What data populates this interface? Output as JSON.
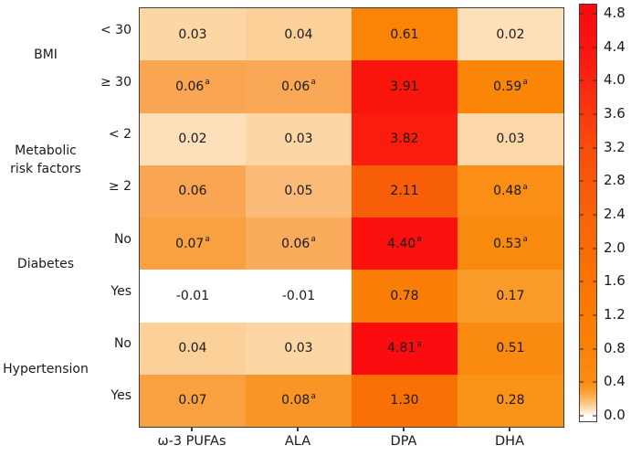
{
  "chart_data": {
    "type": "heatmap",
    "title": "",
    "xlabel": "",
    "ylabel": "",
    "columns": [
      "ω-3 PUFAs",
      "ALA",
      "DPA",
      "DHA"
    ],
    "row_groups": [
      {
        "name": "BMI",
        "lines": [
          "BMI"
        ]
      },
      {
        "name": "Metabolic risk factors",
        "lines": [
          "Metabolic",
          "risk factors"
        ]
      },
      {
        "name": "Diabetes",
        "lines": [
          "Diabetes"
        ]
      },
      {
        "name": "Hypertension",
        "lines": [
          "Hypertension"
        ]
      }
    ],
    "footnote_marker": "a",
    "rows": [
      {
        "group": "BMI",
        "label": "< 30",
        "cells": [
          {
            "v": 0.03,
            "text": "0.03",
            "sup": "",
            "color": "#fcd6a3"
          },
          {
            "v": 0.04,
            "text": "0.04",
            "sup": "",
            "color": "#fcd099"
          },
          {
            "v": 0.61,
            "text": "0.61",
            "sup": "",
            "color": "#fa8405"
          },
          {
            "v": 0.02,
            "text": "0.02",
            "sup": "",
            "color": "#fddfba"
          }
        ]
      },
      {
        "group": "BMI",
        "label": "≥ 30",
        "cells": [
          {
            "v": 0.06,
            "text": "0.06",
            "sup": "a",
            "color": "#faa551"
          },
          {
            "v": 0.06,
            "text": "0.06",
            "sup": "a",
            "color": "#faa756"
          },
          {
            "v": 3.91,
            "text": "3.91",
            "sup": "",
            "color": "#fa150c"
          },
          {
            "v": 0.59,
            "text": "0.59",
            "sup": "a",
            "color": "#fa8506"
          }
        ]
      },
      {
        "group": "Metabolic risk factors",
        "label": "< 2",
        "cells": [
          {
            "v": 0.02,
            "text": "0.02",
            "sup": "",
            "color": "#fddfba"
          },
          {
            "v": 0.03,
            "text": "0.03",
            "sup": "",
            "color": "#fcd6a5"
          },
          {
            "v": 3.82,
            "text": "3.82",
            "sup": "",
            "color": "#fa1d0d"
          },
          {
            "v": 0.03,
            "text": "0.03",
            "sup": "",
            "color": "#fcd8a9"
          }
        ]
      },
      {
        "group": "Metabolic risk factors",
        "label": "≥ 2",
        "cells": [
          {
            "v": 0.06,
            "text": "0.06",
            "sup": "",
            "color": "#faa551"
          },
          {
            "v": 0.05,
            "text": "0.05",
            "sup": "",
            "color": "#fbba77"
          },
          {
            "v": 2.11,
            "text": "2.11",
            "sup": "",
            "color": "#f85d07"
          },
          {
            "v": 0.48,
            "text": "0.48",
            "sup": "a",
            "color": "#fa8e16"
          }
        ]
      },
      {
        "group": "Diabetes",
        "label": "No",
        "cells": [
          {
            "v": 0.07,
            "text": "0.07",
            "sup": "a",
            "color": "#f9a040"
          },
          {
            "v": 0.06,
            "text": "0.06",
            "sup": "a",
            "color": "#faab5c"
          },
          {
            "v": 4.4,
            "text": "4.40",
            "sup": "a",
            "color": "#fa100d"
          },
          {
            "v": 0.53,
            "text": "0.53",
            "sup": "a",
            "color": "#fa8a0e"
          }
        ]
      },
      {
        "group": "Diabetes",
        "label": "Yes",
        "cells": [
          {
            "v": -0.01,
            "text": "-0.01",
            "sup": "",
            "color": "#ffffff"
          },
          {
            "v": -0.01,
            "text": "-0.01",
            "sup": "",
            "color": "#ffffff"
          },
          {
            "v": 0.78,
            "text": "0.78",
            "sup": "",
            "color": "#fa7d05"
          },
          {
            "v": 0.17,
            "text": "0.17",
            "sup": "",
            "color": "#fa9a28"
          }
        ]
      },
      {
        "group": "Hypertension",
        "label": "No",
        "cells": [
          {
            "v": 0.04,
            "text": "0.04",
            "sup": "",
            "color": "#fcd099"
          },
          {
            "v": 0.03,
            "text": "0.03",
            "sup": "",
            "color": "#fcd6a5"
          },
          {
            "v": 4.81,
            "text": "4.81",
            "sup": "a",
            "color": "#fb0c0f"
          },
          {
            "v": 0.51,
            "text": "0.51",
            "sup": "",
            "color": "#fa8b10"
          }
        ]
      },
      {
        "group": "Hypertension",
        "label": "Yes",
        "cells": [
          {
            "v": 0.07,
            "text": "0.07",
            "sup": "",
            "color": "#f9a040"
          },
          {
            "v": 0.08,
            "text": "0.08",
            "sup": "a",
            "color": "#f99527"
          },
          {
            "v": 1.3,
            "text": "1.30",
            "sup": "",
            "color": "#f97005"
          },
          {
            "v": 0.28,
            "text": "0.28",
            "sup": "",
            "color": "#fa9418"
          }
        ]
      }
    ],
    "colorbar": {
      "min": 0.0,
      "max": 4.8,
      "tick_step": 0.4,
      "ticks": [
        "4.8",
        "4.4",
        "4.0",
        "3.6",
        "3.2",
        "2.8",
        "2.4",
        "2.0",
        "1.6",
        "1.2",
        "0.8",
        "0.4",
        "0.0"
      ],
      "gradient": [
        {
          "pos": 0.0,
          "color": "#ffffff"
        },
        {
          "pos": 1.1,
          "color": "#ffffff"
        },
        {
          "pos": 4.1,
          "color": "#fdc98e"
        },
        {
          "pos": 7.1,
          "color": "#fb9f33"
        },
        {
          "pos": 9.2,
          "color": "#fa8d14"
        },
        {
          "pos": 17.2,
          "color": "#fa8206"
        },
        {
          "pos": 33.3,
          "color": "#f97404"
        },
        {
          "pos": 49.4,
          "color": "#f86309"
        },
        {
          "pos": 65.6,
          "color": "#f84d0b"
        },
        {
          "pos": 81.7,
          "color": "#f92510"
        },
        {
          "pos": 89.8,
          "color": "#fa1410"
        },
        {
          "pos": 97.9,
          "color": "#fb0b0d"
        },
        {
          "pos": 100.0,
          "color": "#fb0b0d"
        }
      ]
    },
    "colors": {
      "border": "#3d3d3d",
      "text": "#1a1a1a",
      "background": "#ffffff"
    }
  }
}
